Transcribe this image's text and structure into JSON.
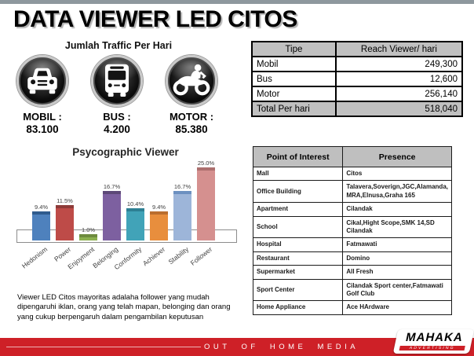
{
  "slide": {
    "title": "DATA VIEWER LED CITOS",
    "traffic": {
      "heading": "Jumlah Traffic Per Hari",
      "items": [
        {
          "icon": "car-icon",
          "label": "MOBIL :",
          "value": "83.100"
        },
        {
          "icon": "bus-icon",
          "label": "BUS :",
          "value": "4.200"
        },
        {
          "icon": "motorcycle-icon",
          "label": "MOTOR :",
          "value": "85.380"
        }
      ]
    },
    "note": "Viewer LED Citos mayoritas adalaha follower yang mudah dipengaruhi iklan, orang yang telah mapan, belonging dan orang yang cukup berpengaruh dalam pengambilan keputusan",
    "reach_table": {
      "headers": [
        "Tipe",
        "Reach Viewer/ hari"
      ],
      "rows": [
        [
          "Mobil",
          "249,300"
        ],
        [
          "Bus",
          "12,600"
        ],
        [
          "Motor",
          "256,140"
        ],
        [
          "Total Per hari",
          "518,040"
        ]
      ]
    },
    "poi_table": {
      "headers": [
        "Point of Interest",
        "Presence"
      ],
      "rows": [
        [
          "Mall",
          "Citos"
        ],
        [
          "Office Building",
          "Talavera,Soverign,JGC,Alamanda, MRA,Elnusa,Graha 165"
        ],
        [
          "Apartment",
          "Cilandak"
        ],
        [
          "School",
          "Cikal,Hight Scope,SMK 14,SD Cilandak"
        ],
        [
          "Hospital",
          "Fatmawati"
        ],
        [
          "Restaurant",
          "Domino"
        ],
        [
          "Supermarket",
          "All Fresh"
        ],
        [
          "Sport Center",
          "Cilandak Sport center,Fatmawati Golf Club"
        ],
        [
          "Home Appliance",
          "Ace HArdware"
        ]
      ]
    },
    "footer": {
      "tagline": "OUT OF HOME MEDIA",
      "brand": "MAHAKA",
      "brand_sub": "ADVERTISING"
    },
    "colors": {
      "accent_red": "#CE2027",
      "top_strip_gray": "#8E989E",
      "table_header_gray": "#C0C0C0"
    }
  },
  "chart_data": {
    "type": "bar",
    "title": "Psycographic Viewer",
    "categories": [
      "Hedonism",
      "Power",
      "Enjoyment",
      "Belonging",
      "Conformity",
      "Achiever",
      "Stability",
      "Follower"
    ],
    "values": [
      9.4,
      11.5,
      1.0,
      16.7,
      10.4,
      9.4,
      16.7,
      25.0
    ],
    "labels": [
      "9.4%",
      "11.5%",
      "1.0%",
      "16.7%",
      "10.4%",
      "9.4%",
      "16.7%",
      "25.0%"
    ],
    "unit": "%",
    "xlabel": "",
    "ylabel": "",
    "ylim": [
      0,
      25
    ],
    "grid": false,
    "legend": "none",
    "bar_colors": [
      "#4E81BD",
      "#BE4B48",
      "#8CB050",
      "#7D60A0",
      "#41A3B8",
      "#E88E3D",
      "#9DB5D9",
      "#D5908F"
    ],
    "bar_cap_colors": [
      "#2F5B8E",
      "#8E3B39",
      "#6E8B3E",
      "#5D4878",
      "#2D7F93",
      "#BA6E2F",
      "#6C90C0",
      "#AC6F6E"
    ]
  }
}
